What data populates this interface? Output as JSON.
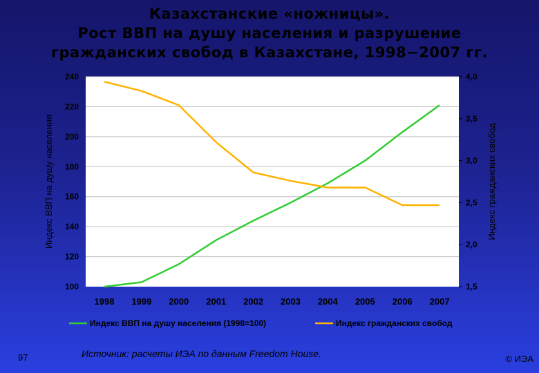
{
  "title": {
    "line1": "Казахстанские «ножницы».",
    "line2": "Рост ВВП на душу населения и разрушение",
    "line3": "гражданских свобод в Казахстане, 1998−2007 гг."
  },
  "chart_data": {
    "type": "line",
    "categories": [
      "1998",
      "1999",
      "2000",
      "2001",
      "2002",
      "2003",
      "2004",
      "2005",
      "2006",
      "2007"
    ],
    "ylabel_left": "Индекс ВВП на душу населения",
    "ylabel_right": "Индекс гражданских свобод",
    "ylim_left": [
      100,
      240
    ],
    "ylim_right": [
      1.5,
      4.0
    ],
    "yticks_left": [
      "100",
      "120",
      "140",
      "160",
      "180",
      "200",
      "220",
      "240"
    ],
    "yticks_right": [
      "1,5",
      "2,0",
      "2,5",
      "3,0",
      "3,5",
      "4,0"
    ],
    "grid": true,
    "legend_position": "bottom",
    "series": [
      {
        "name": "Индекс ВВП на душу населения (1998=100)",
        "axis": "left",
        "color": "#33cc33",
        "values": [
          100,
          103,
          115,
          131,
          144,
          156,
          169,
          184,
          203,
          221
        ]
      },
      {
        "name": "Индекс гражданских свобод",
        "axis": "right",
        "color": "#ffb300",
        "values": [
          3.94,
          3.83,
          3.66,
          3.22,
          2.86,
          2.76,
          2.68,
          2.68,
          2.47,
          2.47
        ]
      }
    ]
  },
  "footer": {
    "page_number": "97",
    "source": "Источник: расчеты ИЭА по данным Freedom House.",
    "copyright": "© ИЭА"
  }
}
